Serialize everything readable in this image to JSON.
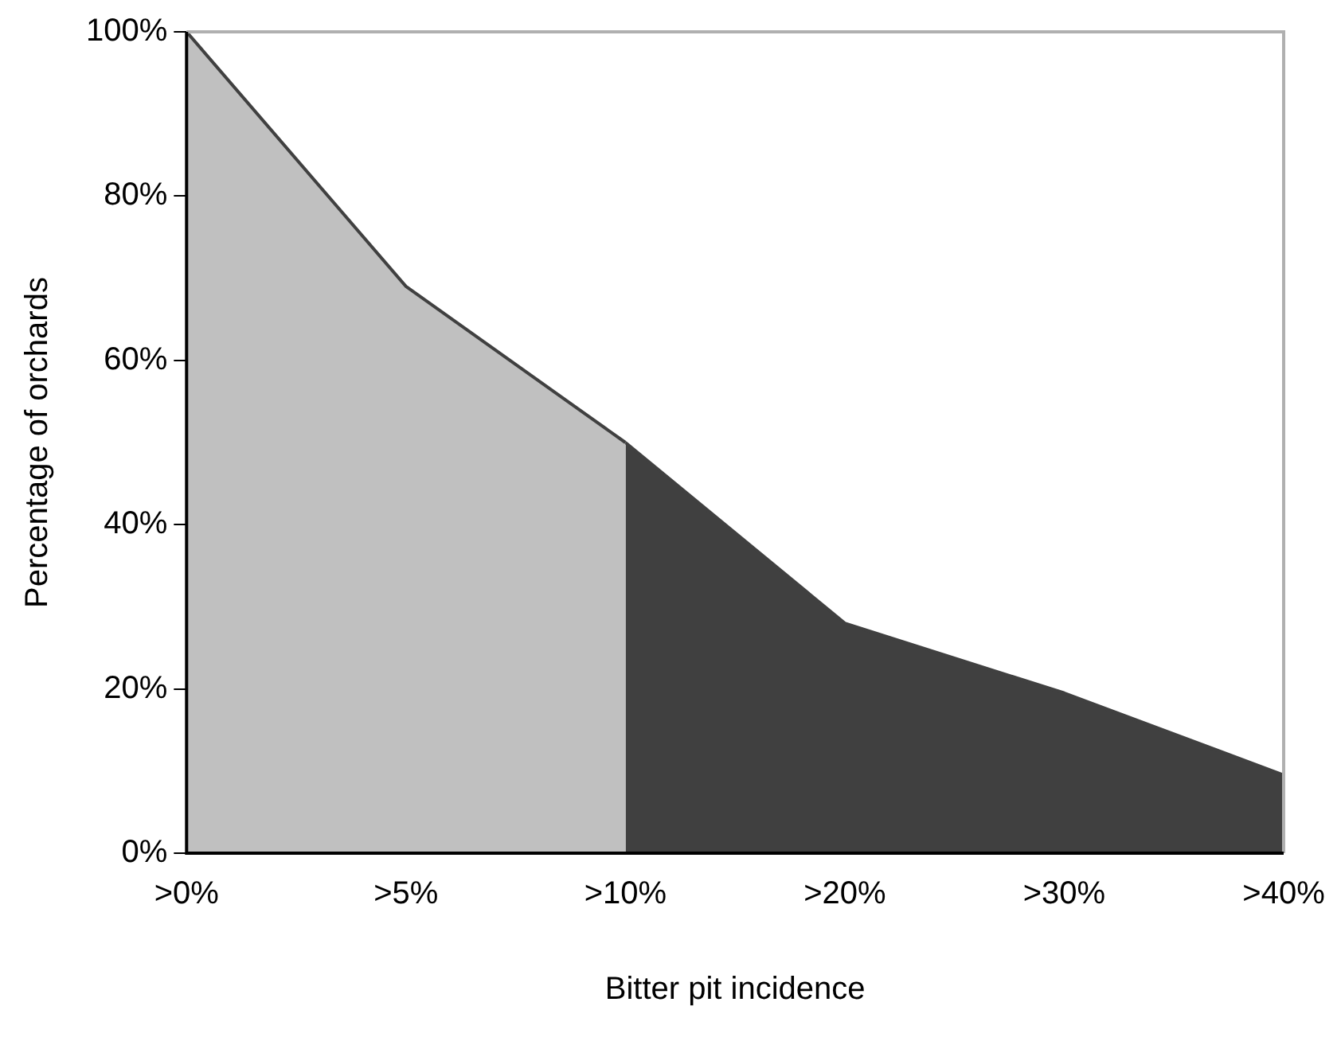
{
  "chart_data": {
    "type": "area",
    "xlabel": "Bitter pit incidence",
    "ylabel": "Percentage of orchards",
    "categories": [
      ">0%",
      ">5%",
      ">10%",
      ">20%",
      ">30%",
      ">40%"
    ],
    "series": [
      {
        "color": "#c0c0c0",
        "values": [
          100,
          69,
          50,
          null,
          null,
          null
        ]
      },
      {
        "color": "#404040",
        "values": [
          null,
          null,
          50,
          28,
          19.5,
          9.5
        ]
      }
    ],
    "ylim": [
      0,
      100
    ],
    "yticks": [
      {
        "value": 0,
        "label": "0%"
      },
      {
        "value": 20,
        "label": "20%"
      },
      {
        "value": 40,
        "label": "40%"
      },
      {
        "value": 60,
        "label": "60%"
      },
      {
        "value": 80,
        "label": "80%"
      },
      {
        "value": 100,
        "label": "100%"
      }
    ],
    "grid": false,
    "legend": false
  }
}
